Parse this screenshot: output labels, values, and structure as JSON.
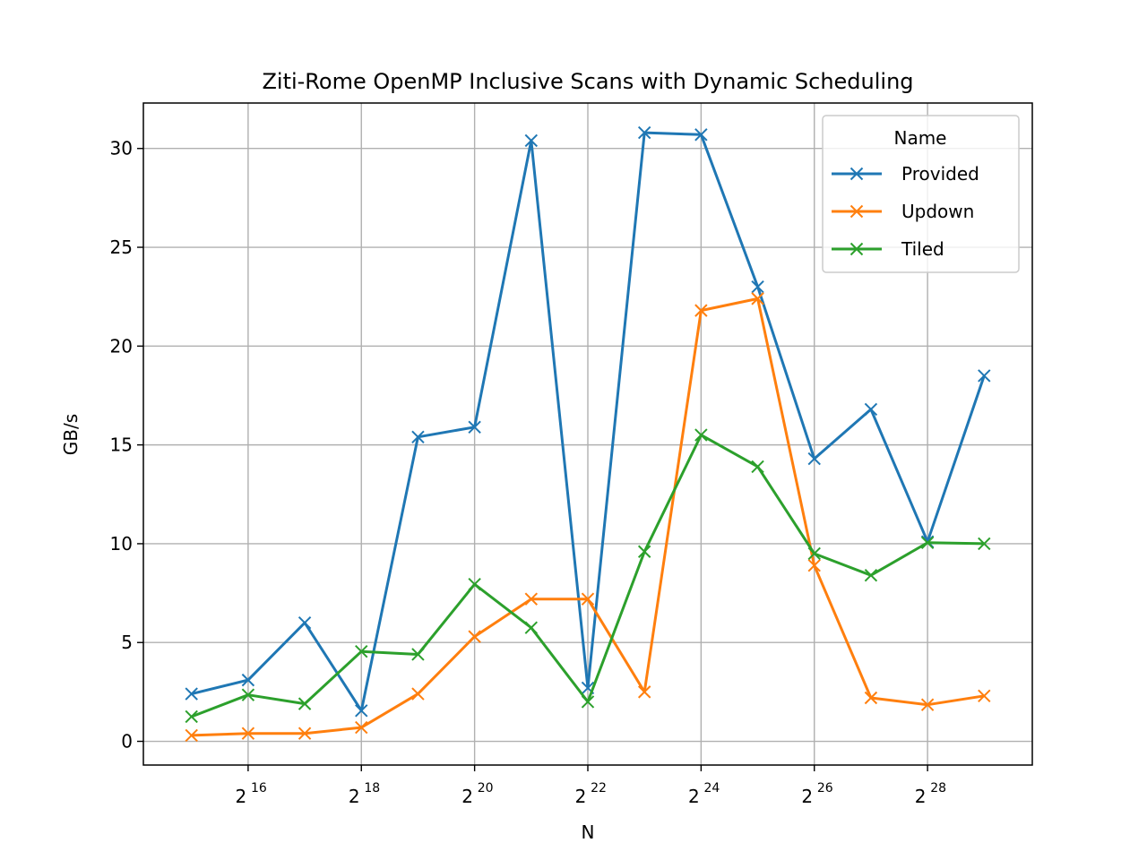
{
  "chart_data": {
    "type": "line",
    "title": "Ziti-Rome OpenMP Inclusive Scans with Dynamic Scheduling",
    "xlabel": "N",
    "ylabel": "GB/s",
    "x_scale": "log2",
    "x_exponents": [
      15,
      16,
      17,
      18,
      19,
      20,
      21,
      22,
      23,
      24,
      25,
      26,
      27,
      28,
      29
    ],
    "x_tick_exponents": [
      "16",
      "18",
      "20",
      "22",
      "24",
      "26",
      "28"
    ],
    "x_tick_base": "2",
    "ylim": [
      -1.2,
      32.3
    ],
    "y_ticks": [
      "0",
      "5",
      "10",
      "15",
      "20",
      "25",
      "30"
    ],
    "grid": true,
    "marker": "x",
    "legend": {
      "title": "Name",
      "placement": "top-right"
    },
    "series": [
      {
        "name": "Provided",
        "color": "#1f77b4",
        "values": [
          2.4,
          3.1,
          6.0,
          1.55,
          15.4,
          15.9,
          30.4,
          2.7,
          30.8,
          30.7,
          23.0,
          14.3,
          16.8,
          10.1,
          18.5
        ]
      },
      {
        "name": "Updown",
        "color": "#ff7f0e",
        "values": [
          0.3,
          0.4,
          0.4,
          0.7,
          2.4,
          5.3,
          7.2,
          7.2,
          2.5,
          21.8,
          22.4,
          8.9,
          2.2,
          1.85,
          2.3
        ]
      },
      {
        "name": "Tiled",
        "color": "#2ca02c",
        "values": [
          1.25,
          2.35,
          1.9,
          4.55,
          4.4,
          7.95,
          5.75,
          2.0,
          9.6,
          15.5,
          13.9,
          9.5,
          8.4,
          10.05,
          10.0
        ]
      }
    ]
  }
}
